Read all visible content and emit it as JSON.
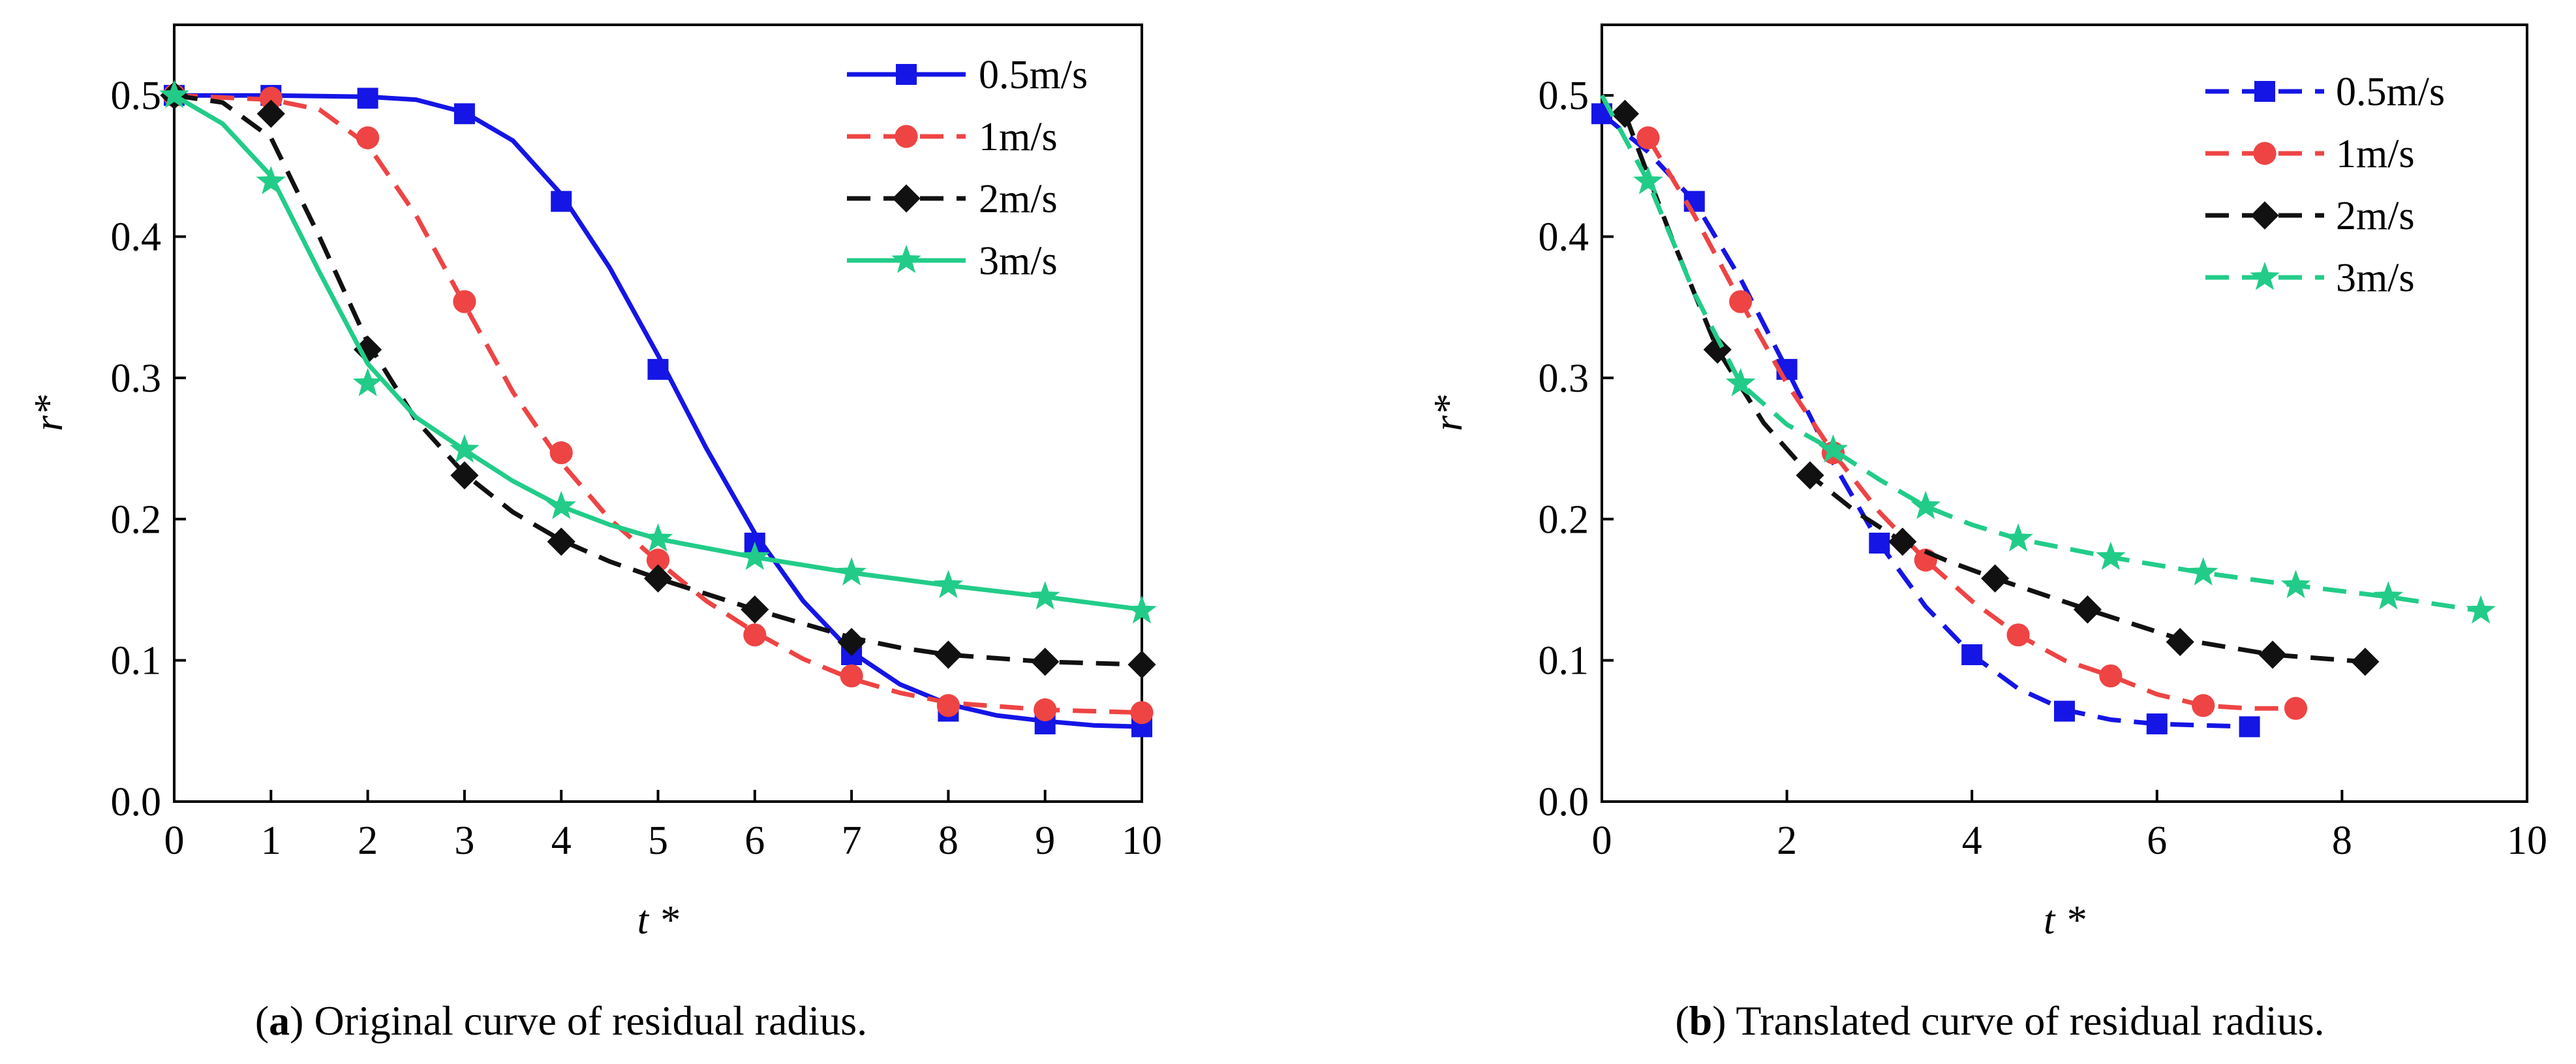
{
  "chart_data": [
    {
      "type": "line",
      "panel": "a",
      "caption_label": "a",
      "caption_text": "Original curve of residual radius.",
      "xlabel": "t *",
      "ylabel": "r*",
      "xlim": [
        0,
        10
      ],
      "ylim": [
        0,
        0.55
      ],
      "xticks": [
        "0",
        "1",
        "2",
        "3",
        "4",
        "5",
        "6",
        "7",
        "8",
        "9",
        "10"
      ],
      "yticks": [
        "0.0",
        "0.1",
        "0.2",
        "0.3",
        "0.4",
        "0.5"
      ],
      "legend_position": "top-right",
      "series": [
        {
          "name": "0.5m/s",
          "color": "#1515e6",
          "marker": "square",
          "line": "solid",
          "points": [
            [
              0,
              0.5
            ],
            [
              1,
              0.5
            ],
            [
              2,
              0.498
            ],
            [
              3,
              0.487
            ],
            [
              4,
              0.425
            ],
            [
              5,
              0.306
            ],
            [
              6,
              0.183
            ],
            [
              7,
              0.104
            ],
            [
              8,
              0.064
            ],
            [
              9,
              0.055
            ],
            [
              10,
              0.053
            ]
          ],
          "curve": [
            [
              0,
              0.5
            ],
            [
              1,
              0.5
            ],
            [
              2,
              0.499
            ],
            [
              2.5,
              0.497
            ],
            [
              3,
              0.488
            ],
            [
              3.5,
              0.468
            ],
            [
              4,
              0.43
            ],
            [
              4.5,
              0.378
            ],
            [
              5,
              0.316
            ],
            [
              5.5,
              0.25
            ],
            [
              6,
              0.19
            ],
            [
              6.5,
              0.142
            ],
            [
              7,
              0.106
            ],
            [
              7.5,
              0.083
            ],
            [
              8,
              0.069
            ],
            [
              8.5,
              0.061
            ],
            [
              9,
              0.057
            ],
            [
              9.5,
              0.054
            ],
            [
              10,
              0.053
            ]
          ]
        },
        {
          "name": "1m/s",
          "color": "#ee4444",
          "marker": "circle",
          "line": "dashed",
          "points": [
            [
              0,
              0.5
            ],
            [
              1,
              0.498
            ],
            [
              2,
              0.47
            ],
            [
              3,
              0.354
            ],
            [
              4,
              0.247
            ],
            [
              5,
              0.171
            ],
            [
              6,
              0.118
            ],
            [
              7,
              0.089
            ],
            [
              8,
              0.068
            ],
            [
              9,
              0.065
            ],
            [
              10,
              0.063
            ]
          ],
          "curve": [
            [
              0,
              0.5
            ],
            [
              1,
              0.497
            ],
            [
              1.5,
              0.49
            ],
            [
              2,
              0.465
            ],
            [
              2.5,
              0.415
            ],
            [
              3,
              0.352
            ],
            [
              3.5,
              0.29
            ],
            [
              4,
              0.24
            ],
            [
              4.5,
              0.2
            ],
            [
              5,
              0.17
            ],
            [
              5.5,
              0.142
            ],
            [
              6,
              0.12
            ],
            [
              6.5,
              0.101
            ],
            [
              7,
              0.087
            ],
            [
              7.5,
              0.077
            ],
            [
              8,
              0.07
            ],
            [
              9,
              0.065
            ],
            [
              10,
              0.063
            ]
          ]
        },
        {
          "name": "2m/s",
          "color": "#111111",
          "marker": "diamond",
          "line": "dashed",
          "points": [
            [
              0,
              0.5
            ],
            [
              1,
              0.487
            ],
            [
              2,
              0.32
            ],
            [
              3,
              0.231
            ],
            [
              4,
              0.184
            ],
            [
              5,
              0.158
            ],
            [
              6,
              0.136
            ],
            [
              7,
              0.113
            ],
            [
              8,
              0.104
            ],
            [
              9,
              0.099
            ],
            [
              10,
              0.097
            ]
          ],
          "curve": [
            [
              0,
              0.5
            ],
            [
              0.5,
              0.495
            ],
            [
              1,
              0.47
            ],
            [
              1.5,
              0.4
            ],
            [
              2,
              0.325
            ],
            [
              2.5,
              0.27
            ],
            [
              3,
              0.232
            ],
            [
              3.5,
              0.205
            ],
            [
              4,
              0.185
            ],
            [
              4.5,
              0.17
            ],
            [
              5,
              0.158
            ],
            [
              6,
              0.136
            ],
            [
              7,
              0.116
            ],
            [
              7.5,
              0.109
            ],
            [
              8,
              0.104
            ],
            [
              9,
              0.099
            ],
            [
              10,
              0.097
            ]
          ]
        },
        {
          "name": "3m/s",
          "color": "#22cc88",
          "marker": "star",
          "line": "solid",
          "points": [
            [
              0,
              0.5
            ],
            [
              1,
              0.439
            ],
            [
              2,
              0.296
            ],
            [
              3,
              0.249
            ],
            [
              4,
              0.209
            ],
            [
              5,
              0.186
            ],
            [
              6,
              0.173
            ],
            [
              7,
              0.162
            ],
            [
              8,
              0.153
            ],
            [
              9,
              0.145
            ],
            [
              10,
              0.135
            ]
          ],
          "curve": [
            [
              0,
              0.5
            ],
            [
              0.5,
              0.48
            ],
            [
              1,
              0.443
            ],
            [
              1.5,
              0.375
            ],
            [
              2,
              0.31
            ],
            [
              2.5,
              0.272
            ],
            [
              3,
              0.249
            ],
            [
              3.5,
              0.227
            ],
            [
              4,
              0.209
            ],
            [
              4.5,
              0.196
            ],
            [
              5,
              0.186
            ],
            [
              6,
              0.173
            ],
            [
              7,
              0.162
            ],
            [
              8,
              0.153
            ],
            [
              9,
              0.145
            ],
            [
              10,
              0.136
            ]
          ]
        }
      ]
    },
    {
      "type": "line",
      "panel": "b",
      "caption_label": "b",
      "caption_text": "Translated curve of residual radius.",
      "xlabel": "t *",
      "ylabel": "r*",
      "xlim": [
        0,
        10
      ],
      "ylim": [
        0,
        0.55
      ],
      "xticks": [
        "0",
        "2",
        "4",
        "6",
        "8",
        "10"
      ],
      "yticks": [
        "0.0",
        "0.1",
        "0.2",
        "0.3",
        "0.4",
        "0.5"
      ],
      "legend_position": "top-right",
      "series": [
        {
          "name": "0.5m/s",
          "color": "#1515e6",
          "marker": "square",
          "line": "dashed",
          "points": [
            [
              0,
              0.487
            ],
            [
              1,
              0.425
            ],
            [
              2,
              0.306
            ],
            [
              3,
              0.183
            ],
            [
              4,
              0.104
            ],
            [
              5,
              0.064
            ],
            [
              6,
              0.055
            ],
            [
              7,
              0.053
            ]
          ],
          "curve": [
            [
              0,
              0.487
            ],
            [
              0.5,
              0.46
            ],
            [
              1,
              0.425
            ],
            [
              1.5,
              0.37
            ],
            [
              2,
              0.306
            ],
            [
              2.5,
              0.24
            ],
            [
              3,
              0.183
            ],
            [
              3.5,
              0.138
            ],
            [
              4,
              0.104
            ],
            [
              4.5,
              0.08
            ],
            [
              5,
              0.065
            ],
            [
              5.5,
              0.058
            ],
            [
              6,
              0.055
            ],
            [
              7,
              0.053
            ]
          ]
        },
        {
          "name": "1m/s",
          "color": "#ee4444",
          "marker": "circle",
          "line": "dashed",
          "points": [
            [
              0.5,
              0.47
            ],
            [
              1.5,
              0.354
            ],
            [
              2.5,
              0.247
            ],
            [
              3.5,
              0.171
            ],
            [
              4.5,
              0.118
            ],
            [
              5.5,
              0.089
            ],
            [
              6.5,
              0.068
            ],
            [
              7.5,
              0.066
            ]
          ],
          "curve": [
            [
              0.5,
              0.47
            ],
            [
              1,
              0.415
            ],
            [
              1.5,
              0.354
            ],
            [
              2,
              0.296
            ],
            [
              2.5,
              0.247
            ],
            [
              3,
              0.205
            ],
            [
              3.5,
              0.171
            ],
            [
              4,
              0.142
            ],
            [
              4.5,
              0.118
            ],
            [
              5,
              0.1
            ],
            [
              5.5,
              0.089
            ],
            [
              6,
              0.076
            ],
            [
              6.5,
              0.068
            ],
            [
              7,
              0.066
            ],
            [
              7.5,
              0.066
            ]
          ]
        },
        {
          "name": "2m/s",
          "color": "#111111",
          "marker": "diamond",
          "line": "dashed",
          "points": [
            [
              0.25,
              0.487
            ],
            [
              1.25,
              0.32
            ],
            [
              2.25,
              0.231
            ],
            [
              3.25,
              0.184
            ],
            [
              4.25,
              0.158
            ],
            [
              5.25,
              0.136
            ],
            [
              6.25,
              0.113
            ],
            [
              7.25,
              0.104
            ],
            [
              8.25,
              0.099
            ]
          ],
          "curve": [
            [
              0.25,
              0.487
            ],
            [
              0.75,
              0.4
            ],
            [
              1.25,
              0.32
            ],
            [
              1.75,
              0.268
            ],
            [
              2.25,
              0.231
            ],
            [
              2.75,
              0.205
            ],
            [
              3.25,
              0.184
            ],
            [
              3.75,
              0.17
            ],
            [
              4.25,
              0.158
            ],
            [
              5.25,
              0.136
            ],
            [
              6.25,
              0.115
            ],
            [
              7.25,
              0.104
            ],
            [
              8.25,
              0.099
            ]
          ]
        },
        {
          "name": "3m/s",
          "color": "#22cc88",
          "marker": "star",
          "line": "dashed",
          "points": [
            [
              0.5,
              0.439
            ],
            [
              1.5,
              0.296
            ],
            [
              2.5,
              0.249
            ],
            [
              3.5,
              0.209
            ],
            [
              4.5,
              0.186
            ],
            [
              5.5,
              0.173
            ],
            [
              6.5,
              0.162
            ],
            [
              7.5,
              0.153
            ],
            [
              8.5,
              0.145
            ],
            [
              9.5,
              0.135
            ]
          ],
          "curve": [
            [
              0,
              0.5
            ],
            [
              0.5,
              0.439
            ],
            [
              1,
              0.36
            ],
            [
              1.5,
              0.296
            ],
            [
              2,
              0.267
            ],
            [
              2.5,
              0.249
            ],
            [
              3,
              0.228
            ],
            [
              3.5,
              0.209
            ],
            [
              4,
              0.196
            ],
            [
              4.5,
              0.186
            ],
            [
              5.5,
              0.173
            ],
            [
              6.5,
              0.162
            ],
            [
              7.5,
              0.153
            ],
            [
              8.5,
              0.145
            ],
            [
              9.5,
              0.135
            ]
          ]
        }
      ]
    }
  ]
}
